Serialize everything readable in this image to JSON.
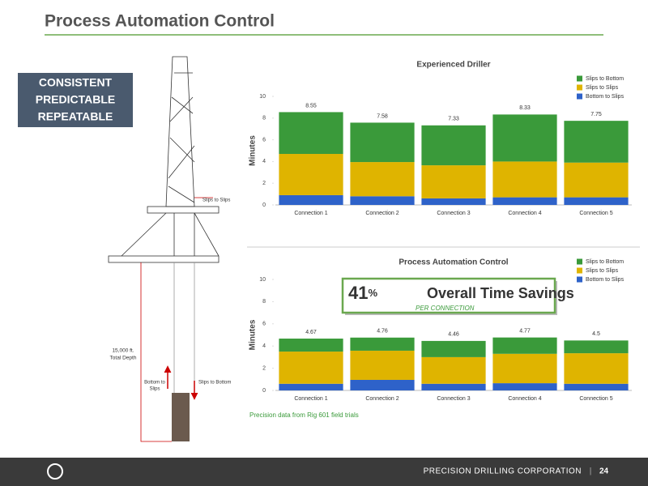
{
  "slide": {
    "title": "Process Automation Control",
    "badge": [
      "CONSISTENT",
      "PREDICTABLE",
      "REPEATABLE"
    ],
    "diagram": {
      "slips_to_slips": "Slips to Slips",
      "depth": [
        "15,000 ft.",
        "Total Depth"
      ],
      "bottom_to_slips": [
        "Bottom to",
        "Slips"
      ],
      "slips_to_bottom": "Slips to Bottom"
    },
    "callout": {
      "percent": "41",
      "percent_sign": "%",
      "text": "Overall Time Savings",
      "sub": "PER CONNECTION"
    },
    "footnote": "Precision data from Rig 601 field trials",
    "footer": {
      "company": "PRECISION DRILLING CORPORATION",
      "separator": "|",
      "page": "24"
    }
  },
  "chart_data": [
    {
      "type": "stacked_bar",
      "title": "Experienced Driller",
      "y_label": "Minutes",
      "categories": [
        "Connection 1",
        "Connection 2",
        "Connection 3",
        "Connection 4",
        "Connection 5"
      ],
      "series": [
        {
          "name": "Bottom to Slips",
          "color": "#2e62c9",
          "values": [
            0.9,
            0.8,
            0.6,
            0.7,
            0.7
          ]
        },
        {
          "name": "Slips to Slips",
          "color": "#dfb400",
          "values": [
            3.8,
            3.15,
            3.05,
            3.3,
            3.2
          ]
        },
        {
          "name": "Slips to Bottom",
          "color": "#3a9a3a",
          "values": [
            3.85,
            3.63,
            3.68,
            4.33,
            3.85
          ]
        }
      ],
      "totals": [
        8.55,
        7.58,
        7.33,
        8.33,
        7.75
      ],
      "ylim": [
        0,
        10
      ],
      "yticks": [
        0,
        2,
        4,
        6,
        8,
        10
      ],
      "legend": "top-right"
    },
    {
      "type": "stacked_bar",
      "title": "Process Automation Control",
      "y_label": "Minutes",
      "categories": [
        "Connection 1",
        "Connection 2",
        "Connection 3",
        "Connection 4",
        "Connection 5"
      ],
      "series": [
        {
          "name": "Bottom to Slips",
          "color": "#2e62c9",
          "values": [
            0.6,
            0.95,
            0.6,
            0.65,
            0.6
          ]
        },
        {
          "name": "Slips to Slips",
          "color": "#dfb400",
          "values": [
            2.9,
            2.63,
            2.4,
            2.65,
            2.75
          ]
        },
        {
          "name": "Slips to Bottom",
          "color": "#3a9a3a",
          "values": [
            1.17,
            1.18,
            1.46,
            1.47,
            1.15
          ]
        }
      ],
      "totals": [
        4.67,
        4.76,
        4.46,
        4.77,
        4.5
      ],
      "ylim": [
        0,
        10
      ],
      "yticks": [
        0,
        2,
        4,
        6,
        8,
        10
      ],
      "legend": "top-right"
    }
  ]
}
